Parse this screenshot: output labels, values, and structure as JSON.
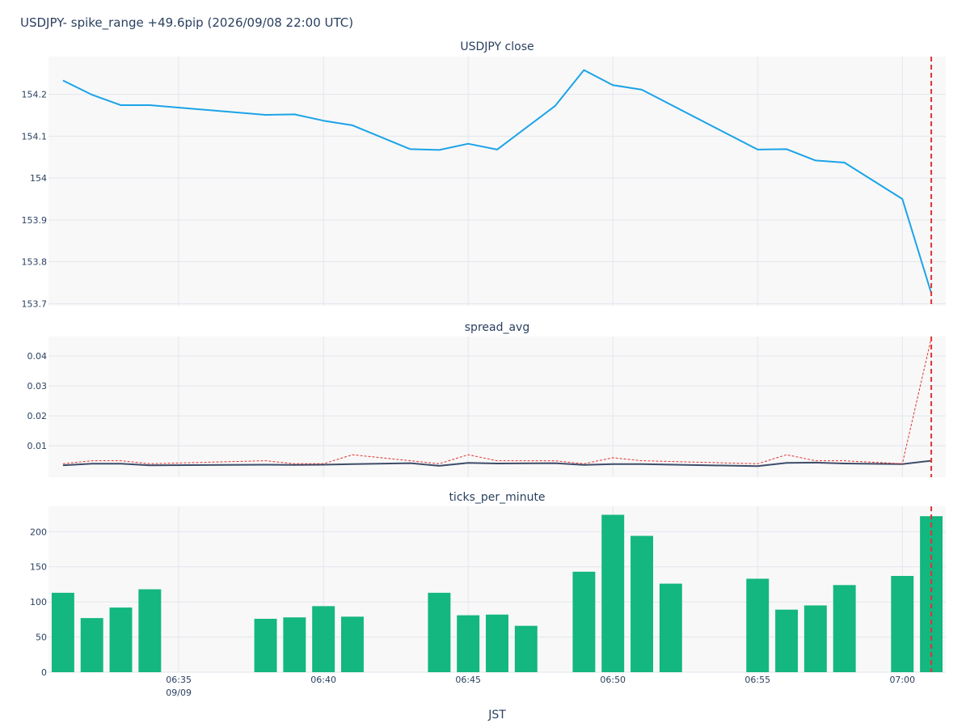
{
  "figure": {
    "title": "USDJPY- spike_range +49.6pip (2026/09/08 22:00 UTC)",
    "xlabel": "JST",
    "colors": {
      "plot_bg": "#f8f8f8",
      "grid": "#e3e6ee",
      "marker": "#e0332f",
      "text": "#2a3f5f"
    }
  },
  "chart_data": [
    {
      "type": "line",
      "title": "USDJPY close",
      "x": [
        "06:31",
        "06:32",
        "06:33",
        "06:34",
        "06:38",
        "06:39",
        "06:40",
        "06:41",
        "06:43",
        "06:44",
        "06:45",
        "06:46",
        "06:48",
        "06:49",
        "06:50",
        "06:51",
        "06:55",
        "06:56",
        "06:57",
        "06:58",
        "07:00",
        "07:01"
      ],
      "series": [
        {
          "values": [
            154.233,
            154.199,
            154.174,
            154.174,
            154.151,
            154.152,
            154.137,
            154.126,
            154.069,
            154.067,
            154.082,
            154.068,
            154.172,
            154.258,
            154.222,
            154.211,
            154.068,
            154.069,
            154.042,
            154.037,
            153.95,
            153.725
          ],
          "color": "#1ba3e8"
        }
      ],
      "ylim": [
        153.695,
        154.29
      ],
      "yticks": [
        "153.7",
        "153.8",
        "153.9",
        "154",
        "154.1",
        "154.2"
      ],
      "ytick_values": [
        153.7,
        153.8,
        153.9,
        154.0,
        154.1,
        154.2
      ],
      "event_marker_x": "07:01"
    },
    {
      "type": "line",
      "title": "spread_avg",
      "x": [
        "06:31",
        "06:32",
        "06:33",
        "06:34",
        "06:38",
        "06:39",
        "06:40",
        "06:41",
        "06:43",
        "06:44",
        "06:45",
        "06:46",
        "06:48",
        "06:49",
        "06:50",
        "06:51",
        "06:55",
        "06:56",
        "06:57",
        "06:58",
        "07:00",
        "07:01"
      ],
      "series": [
        {
          "values": [
            0.0035,
            0.004,
            0.004,
            0.0035,
            0.0037,
            0.0036,
            0.0037,
            0.0039,
            0.0042,
            0.0033,
            0.0043,
            0.0041,
            0.0042,
            0.0036,
            0.0039,
            0.0039,
            0.0032,
            0.0043,
            0.0044,
            0.0041,
            0.0039,
            0.005
          ],
          "color": "#3d4d6a",
          "dash": false
        },
        {
          "values": [
            0.004,
            0.005,
            0.005,
            0.004,
            0.005,
            0.004,
            0.004,
            0.007,
            0.005,
            0.004,
            0.007,
            0.005,
            0.005,
            0.004,
            0.006,
            0.005,
            0.004,
            0.007,
            0.005,
            0.005,
            0.004,
            0.046
          ],
          "color": "#e0332f",
          "dash": true
        }
      ],
      "ylim": [
        -0.0005,
        0.0465
      ],
      "yticks": [
        "0.01",
        "0.02",
        "0.03",
        "0.04"
      ],
      "ytick_values": [
        0.01,
        0.02,
        0.03,
        0.04
      ],
      "event_marker_x": "07:01"
    },
    {
      "type": "bar",
      "title": "ticks_per_minute",
      "x": [
        "06:31",
        "06:32",
        "06:33",
        "06:34",
        "06:38",
        "06:39",
        "06:40",
        "06:41",
        "06:44",
        "06:45",
        "06:46",
        "06:47",
        "06:49",
        "06:50",
        "06:51",
        "06:52",
        "06:55",
        "06:56",
        "06:57",
        "06:58",
        "07:00",
        "07:01"
      ],
      "values": [
        113,
        77,
        92,
        118,
        76,
        78,
        94,
        79,
        113,
        81,
        82,
        66,
        143,
        224,
        194,
        126,
        133,
        89,
        95,
        124,
        137,
        222
      ],
      "color": "#13b77f",
      "ylim": [
        0,
        236
      ],
      "yticks": [
        "0",
        "50",
        "100",
        "150",
        "200"
      ],
      "ytick_values": [
        0,
        50,
        100,
        150,
        200
      ],
      "event_marker_x": "07:01"
    }
  ],
  "x_axis": {
    "ticks": [
      {
        "t": "06:35",
        "label": "06:35",
        "sub": "09/09"
      },
      {
        "t": "06:40",
        "label": "06:40",
        "sub": ""
      },
      {
        "t": "06:45",
        "label": "06:45",
        "sub": ""
      },
      {
        "t": "06:50",
        "label": "06:50",
        "sub": ""
      },
      {
        "t": "06:55",
        "label": "06:55",
        "sub": ""
      },
      {
        "t": "07:00",
        "label": "07:00",
        "sub": ""
      }
    ],
    "range": [
      "06:30.5",
      "07:01.5"
    ]
  }
}
